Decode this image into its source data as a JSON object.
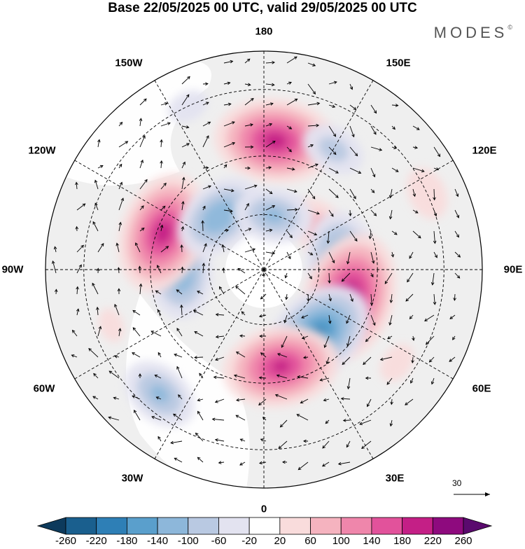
{
  "title": "Base 22/05/2025 00 UTC, valid 29/05/2025 00 UTC",
  "logo": "MODES",
  "logo_mark": "©",
  "longitude_labels": {
    "n180": "180",
    "e150": "150E",
    "e120": "120E",
    "e90": "90E",
    "e60": "60E",
    "e30": "30E",
    "n0": "0",
    "w30": "30W",
    "w60": "60W",
    "w90": "90W",
    "w120": "120W",
    "w150": "150W"
  },
  "reference_vector": {
    "label": "30"
  },
  "colorbar": {
    "colors": [
      "#0d3a5c",
      "#1a5f8e",
      "#2e7fb6",
      "#5a9fcc",
      "#8db7da",
      "#b9c9e2",
      "#e3e3f0",
      "#ffffff",
      "#f9dcdc",
      "#f5b3bf",
      "#ef86ab",
      "#e2529b",
      "#c41f86",
      "#8e0a7e",
      "#5a0a6e"
    ],
    "tick_labels": [
      "-260",
      "-220",
      "-180",
      "-140",
      "-100",
      "-60",
      "-20",
      "20",
      "60",
      "100",
      "140",
      "180",
      "220",
      "260"
    ]
  },
  "anomaly_centers": [
    {
      "lon": 175,
      "colat": 45,
      "value": 200
    },
    {
      "lon": 150,
      "colat": 48,
      "value": -80
    },
    {
      "lon": 152,
      "colat": 22,
      "value": -60
    },
    {
      "lon": 125,
      "colat": 25,
      "value": 90
    },
    {
      "lon": 115,
      "colat": 60,
      "value": 60
    },
    {
      "lon": 95,
      "colat": 28,
      "value": -160
    },
    {
      "lon": 72,
      "colat": 32,
      "value": 220
    },
    {
      "lon": 40,
      "colat": 30,
      "value": -190
    },
    {
      "lon": 10,
      "colat": 35,
      "value": 190
    },
    {
      "lon": -40,
      "colat": 55,
      "value": -110
    },
    {
      "lon": -88,
      "colat": 30,
      "value": -140
    },
    {
      "lon": -110,
      "colat": 38,
      "value": 200
    },
    {
      "lon": -140,
      "colat": 25,
      "value": -140
    },
    {
      "lon": -155,
      "colat": 60,
      "value": -40
    },
    {
      "lon": 170,
      "colat": 20,
      "value": -110
    },
    {
      "lon": 55,
      "colat": 55,
      "value": 40
    },
    {
      "lon": -70,
      "colat": 55,
      "value": 30
    }
  ]
}
